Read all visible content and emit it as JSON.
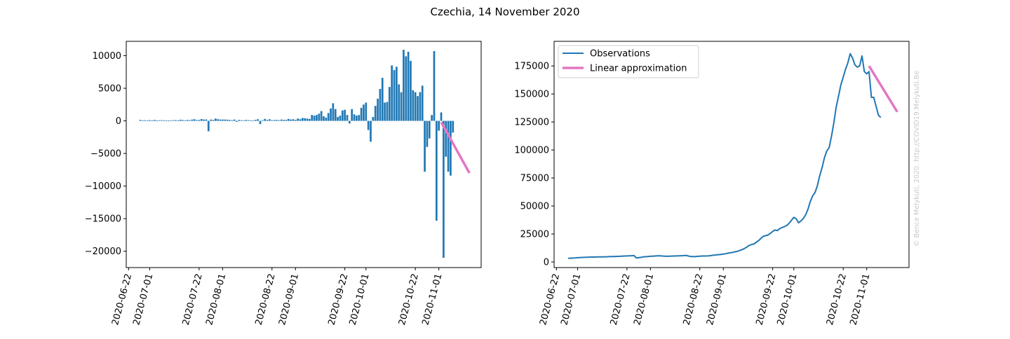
{
  "figure": {
    "title": "Czechia, 14 November 2020",
    "watermark": "© Bence Melykuti, 2020. http://COVID19.Melykuti.Be"
  },
  "colors": {
    "bar": "#1f77b4",
    "line": "#1f77b4",
    "approx": "#e377c2",
    "watermark": "#c8c8c8"
  },
  "chart_data": [
    {
      "type": "bar",
      "title": "",
      "xlabel": "",
      "ylabel": "",
      "x_start_date": "2020-06-27",
      "xlim_dates": [
        "2020-06-21",
        "2020-11-19"
      ],
      "ylim": [
        -22500,
        12200
      ],
      "yticks": [
        10000,
        5000,
        0,
        -5000,
        -10000,
        -15000,
        -20000
      ],
      "ytick_labels": [
        "10000",
        "5000",
        "0",
        "−5000",
        "−10000",
        "−15000",
        "−20000"
      ],
      "xticks": [
        "2020-06-22",
        "2020-07-01",
        "2020-07-22",
        "2020-08-01",
        "2020-08-22",
        "2020-09-01",
        "2020-09-22",
        "2020-10-01",
        "2020-10-22",
        "2020-11-01"
      ],
      "values": [
        150,
        80,
        100,
        60,
        120,
        40,
        150,
        60,
        80,
        100,
        90,
        70,
        60,
        80,
        100,
        120,
        60,
        180,
        130,
        80,
        150,
        100,
        200,
        250,
        120,
        150,
        280,
        200,
        220,
        -1600,
        200,
        150,
        350,
        250,
        200,
        200,
        200,
        180,
        150,
        100,
        200,
        -150,
        150,
        100,
        80,
        150,
        100,
        80,
        50,
        150,
        250,
        -500,
        100,
        300,
        150,
        250,
        100,
        120,
        150,
        100,
        200,
        150,
        150,
        300,
        200,
        250,
        150,
        350,
        250,
        450,
        400,
        350,
        300,
        900,
        800,
        900,
        1100,
        1500,
        700,
        500,
        1200,
        1900,
        2700,
        1800,
        600,
        800,
        1600,
        1700,
        900,
        -400,
        1800,
        1000,
        800,
        900,
        2000,
        2500,
        2800,
        -1400,
        -3200,
        600,
        2300,
        3400,
        4900,
        6600,
        2800,
        2900,
        5200,
        8500,
        7800,
        8300,
        5600,
        4400,
        10900,
        9900,
        10600,
        9200,
        4700,
        4400,
        3800,
        4400,
        5400,
        -7800,
        -4000,
        -2700,
        900,
        10700,
        -15300,
        -1500,
        1300,
        -21000,
        -5500,
        -7800,
        -8400,
        -1800
      ],
      "approx": {
        "name": "Linear approximation",
        "start_date": "2020-11-02",
        "end_date": "2020-11-14",
        "y": [
          -200,
          -8000
        ]
      }
    },
    {
      "type": "line",
      "title": "",
      "xlabel": "",
      "ylabel": "",
      "x_start_date": "2020-06-27",
      "xlim_dates": [
        "2020-06-21",
        "2020-11-19"
      ],
      "ylim": [
        -5000,
        197000
      ],
      "yticks": [
        0,
        25000,
        50000,
        75000,
        100000,
        125000,
        150000,
        175000
      ],
      "ytick_labels": [
        "0",
        "25000",
        "50000",
        "75000",
        "100000",
        "125000",
        "150000",
        "175000"
      ],
      "xticks": [
        "2020-06-22",
        "2020-07-01",
        "2020-07-22",
        "2020-08-01",
        "2020-08-22",
        "2020-09-01",
        "2020-09-22",
        "2020-10-01",
        "2020-10-22",
        "2020-11-01"
      ],
      "legend": {
        "placement": "top-left",
        "entries": [
          {
            "name": "Observations",
            "color": "#1f77b4"
          },
          {
            "name": "Linear approximation",
            "color": "#e377c2"
          }
        ]
      },
      "series": [
        {
          "name": "Observations",
          "values": [
            3200,
            3400,
            3500,
            3650,
            3800,
            3950,
            4050,
            4150,
            4250,
            4300,
            4350,
            4400,
            4450,
            4480,
            4500,
            4550,
            4600,
            4700,
            4800,
            4850,
            4900,
            5000,
            5100,
            5200,
            5300,
            5400,
            5500,
            5600,
            5700,
            3600,
            3800,
            4100,
            4500,
            4700,
            4900,
            5050,
            5200,
            5350,
            5450,
            5500,
            5300,
            5200,
            5100,
            5200,
            5250,
            5300,
            5400,
            5450,
            5550,
            5650,
            5900,
            5400,
            4900,
            4800,
            4750,
            5000,
            5200,
            5300,
            5350,
            5400,
            5500,
            5800,
            6100,
            6300,
            6500,
            6700,
            7000,
            7400,
            7800,
            8200,
            8600,
            9100,
            9500,
            10300,
            11100,
            12000,
            13300,
            14800,
            15500,
            16000,
            17500,
            19000,
            21000,
            22800,
            23500,
            24000,
            25500,
            27300,
            28500,
            28000,
            29800,
            30700,
            31600,
            32500,
            34600,
            37300,
            39800,
            38500,
            35000,
            36500,
            38800,
            42000,
            47000,
            54000,
            59000,
            62000,
            68000,
            77000,
            84000,
            93000,
            99000,
            102000,
            112000,
            124000,
            138000,
            148000,
            158000,
            165000,
            172000,
            178000,
            186000,
            182000,
            176000,
            174000,
            175000,
            184000,
            170000,
            168000,
            170000,
            147000,
            147000,
            139000,
            131000,
            129000
          ]
        }
      ],
      "approx": {
        "name": "Linear approximation",
        "start_date": "2020-11-02",
        "end_date": "2020-11-14",
        "y": [
          175000,
          134000
        ]
      }
    }
  ]
}
